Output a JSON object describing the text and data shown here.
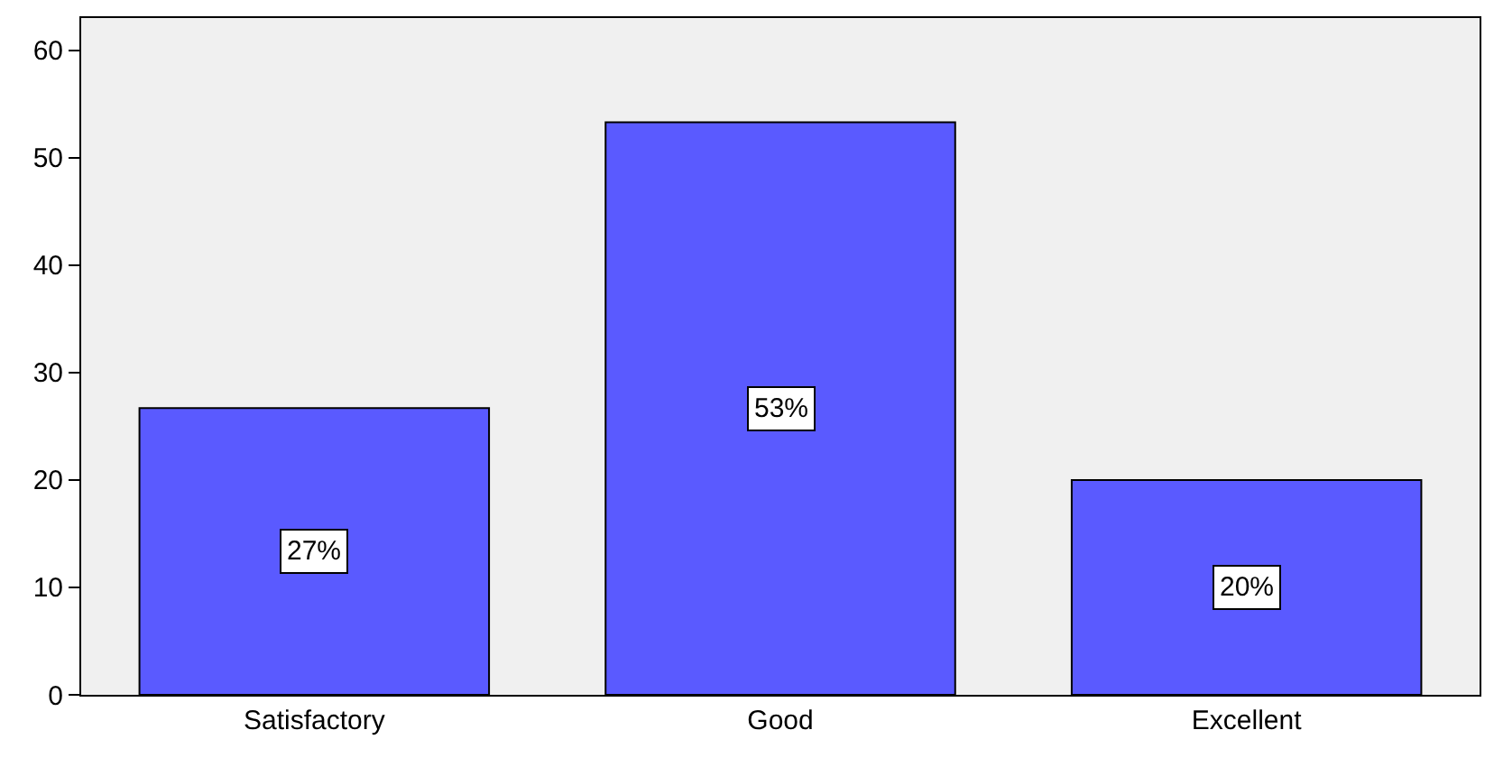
{
  "chart_data": {
    "type": "bar",
    "categories": [
      "Satisfactory",
      "Good",
      "Excellent"
    ],
    "values": [
      26.7,
      53.3,
      20
    ],
    "value_labels": [
      "27%",
      "53%",
      "20%"
    ],
    "color": "#5a5aff",
    "ylim": [
      0,
      63
    ],
    "yticks": [
      0,
      10,
      20,
      30,
      40,
      50,
      60
    ],
    "grid": false
  }
}
